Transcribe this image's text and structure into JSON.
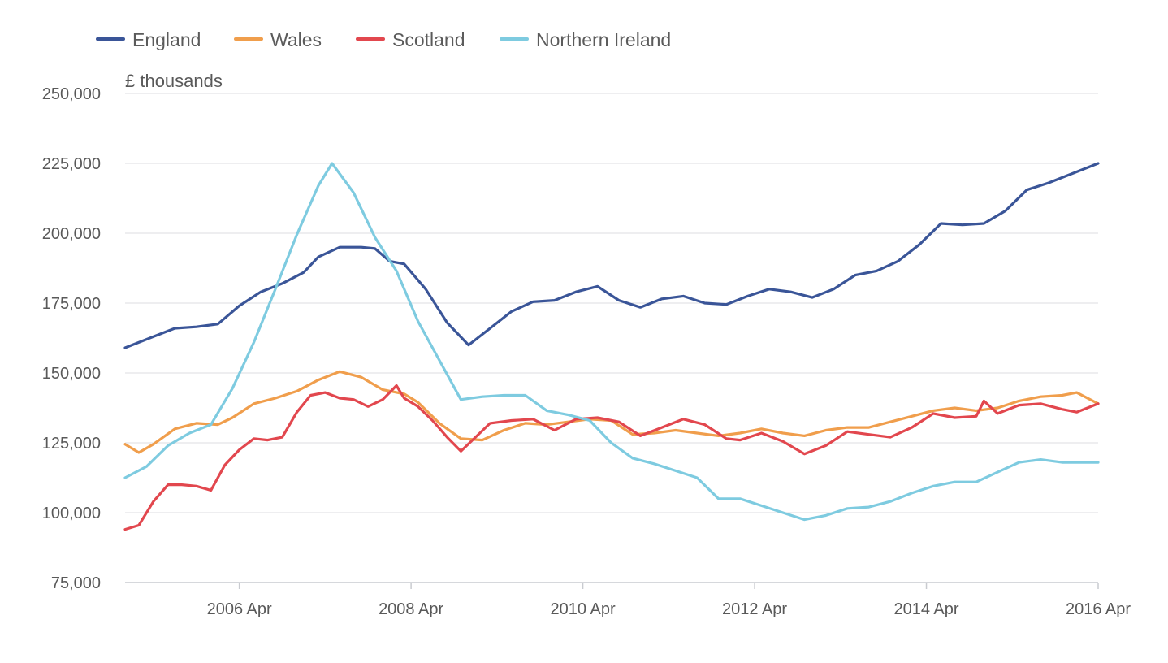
{
  "chart_data": {
    "type": "line",
    "title": "",
    "ylabel": "£ thousands",
    "xlabel": "",
    "ylim": [
      75000,
      250000
    ],
    "yticks": [
      75000,
      100000,
      125000,
      150000,
      175000,
      200000,
      225000,
      250000
    ],
    "ytick_labels": [
      "75,000",
      "100,000",
      "125,000",
      "150,000",
      "175,000",
      "200,000",
      "225,000",
      "250,000"
    ],
    "xlim": [
      2004.92,
      2016.25
    ],
    "xticks": [
      2006.25,
      2008.25,
      2010.25,
      2012.25,
      2014.25,
      2016.25
    ],
    "xtick_labels": [
      "2006 Apr",
      "2008 Apr",
      "2010 Apr",
      "2012 Apr",
      "2014 Apr",
      "2016 Apr"
    ],
    "legend_position": "top-left",
    "grid": true,
    "series": [
      {
        "name": "England",
        "color": "#3a5598",
        "x": [
          2004.92,
          2005.25,
          2005.5,
          2005.75,
          2006.0,
          2006.25,
          2006.5,
          2006.75,
          2007.0,
          2007.17,
          2007.42,
          2007.67,
          2007.83,
          2008.0,
          2008.17,
          2008.42,
          2008.67,
          2008.92,
          2009.17,
          2009.42,
          2009.67,
          2009.92,
          2010.17,
          2010.42,
          2010.67,
          2010.92,
          2011.17,
          2011.42,
          2011.67,
          2011.92,
          2012.17,
          2012.42,
          2012.67,
          2012.92,
          2013.17,
          2013.42,
          2013.67,
          2013.92,
          2014.17,
          2014.42,
          2014.67,
          2014.92,
          2015.17,
          2015.42,
          2015.67,
          2015.92,
          2016.25
        ],
        "values": [
          159000,
          163000,
          166000,
          166500,
          167500,
          174000,
          179000,
          182000,
          186000,
          191500,
          195000,
          195000,
          194500,
          190000,
          189000,
          180000,
          168000,
          160000,
          166000,
          172000,
          175500,
          176000,
          179000,
          181000,
          176000,
          173500,
          176500,
          177500,
          175000,
          174500,
          177500,
          180000,
          179000,
          177000,
          180000,
          185000,
          186500,
          190000,
          196000,
          203500,
          203000,
          203500,
          208000,
          215500,
          218000,
          221000,
          225000
        ]
      },
      {
        "name": "Wales",
        "color": "#f09e4c",
        "x": [
          2004.92,
          2005.08,
          2005.25,
          2005.5,
          2005.75,
          2006.0,
          2006.17,
          2006.42,
          2006.67,
          2006.92,
          2007.17,
          2007.42,
          2007.67,
          2007.92,
          2008.17,
          2008.33,
          2008.58,
          2008.83,
          2009.08,
          2009.33,
          2009.58,
          2009.83,
          2010.08,
          2010.33,
          2010.58,
          2010.83,
          2011.08,
          2011.33,
          2011.58,
          2011.83,
          2012.08,
          2012.33,
          2012.58,
          2012.83,
          2013.08,
          2013.33,
          2013.58,
          2013.83,
          2014.08,
          2014.33,
          2014.58,
          2014.83,
          2015.08,
          2015.33,
          2015.58,
          2015.83,
          2016.0,
          2016.25
        ],
        "values": [
          124500,
          121500,
          124500,
          130000,
          132000,
          131500,
          134000,
          139000,
          141000,
          143500,
          147500,
          150500,
          148500,
          144000,
          142500,
          139500,
          132000,
          126500,
          126000,
          129500,
          132000,
          131500,
          132500,
          133500,
          133000,
          128000,
          128500,
          129500,
          128500,
          127500,
          128500,
          130000,
          128500,
          127500,
          129500,
          130500,
          130500,
          132500,
          134500,
          136500,
          137500,
          136500,
          137500,
          140000,
          141500,
          142000,
          143000,
          139000
        ]
      },
      {
        "name": "Scotland",
        "color": "#e2474e",
        "x": [
          2004.92,
          2005.08,
          2005.25,
          2005.42,
          2005.58,
          2005.75,
          2005.92,
          2006.08,
          2006.25,
          2006.42,
          2006.58,
          2006.75,
          2006.92,
          2007.08,
          2007.25,
          2007.42,
          2007.58,
          2007.75,
          2007.92,
          2008.08,
          2008.17,
          2008.33,
          2008.5,
          2008.67,
          2008.83,
          2009.0,
          2009.17,
          2009.42,
          2009.67,
          2009.92,
          2010.17,
          2010.42,
          2010.67,
          2010.92,
          2011.17,
          2011.42,
          2011.67,
          2011.92,
          2012.08,
          2012.33,
          2012.58,
          2012.83,
          2013.08,
          2013.33,
          2013.58,
          2013.83,
          2014.08,
          2014.33,
          2014.58,
          2014.83,
          2014.92,
          2015.08,
          2015.33,
          2015.58,
          2015.83,
          2016.0,
          2016.25
        ],
        "values": [
          94000,
          95500,
          104000,
          110000,
          110000,
          109500,
          108000,
          117000,
          122500,
          126500,
          126000,
          127000,
          136000,
          142000,
          143000,
          141000,
          140500,
          138000,
          140500,
          145500,
          141000,
          138000,
          133000,
          127000,
          122000,
          127000,
          132000,
          133000,
          133500,
          129500,
          133500,
          134000,
          132500,
          127500,
          130500,
          133500,
          131500,
          126500,
          126000,
          128500,
          125500,
          121000,
          124000,
          129000,
          128000,
          127000,
          130500,
          135500,
          134000,
          134500,
          140000,
          135500,
          138500,
          139000,
          137000,
          136000,
          139000
        ]
      },
      {
        "name": "Northern Ireland",
        "color": "#7ecbe0",
        "x": [
          2004.92,
          2005.17,
          2005.42,
          2005.67,
          2005.92,
          2006.17,
          2006.42,
          2006.67,
          2006.92,
          2007.17,
          2007.33,
          2007.58,
          2007.83,
          2008.08,
          2008.33,
          2008.58,
          2008.83,
          2009.08,
          2009.33,
          2009.58,
          2009.83,
          2010.08,
          2010.33,
          2010.58,
          2010.83,
          2011.08,
          2011.33,
          2011.58,
          2011.83,
          2012.08,
          2012.33,
          2012.58,
          2012.83,
          2013.08,
          2013.33,
          2013.58,
          2013.83,
          2014.08,
          2014.33,
          2014.58,
          2014.83,
          2015.08,
          2015.33,
          2015.58,
          2015.83,
          2016.25
        ],
        "values": [
          112500,
          116500,
          124000,
          128500,
          131500,
          144500,
          161000,
          180000,
          199500,
          217000,
          225000,
          214500,
          198500,
          186500,
          168500,
          154500,
          140500,
          141500,
          142000,
          142000,
          136500,
          135000,
          133000,
          125000,
          119500,
          117500,
          115000,
          112500,
          105000,
          105000,
          102500,
          100000,
          97500,
          99000,
          101500,
          102000,
          104000,
          107000,
          109500,
          111000,
          111000,
          114500,
          118000,
          119000,
          118000,
          118000
        ]
      }
    ]
  }
}
